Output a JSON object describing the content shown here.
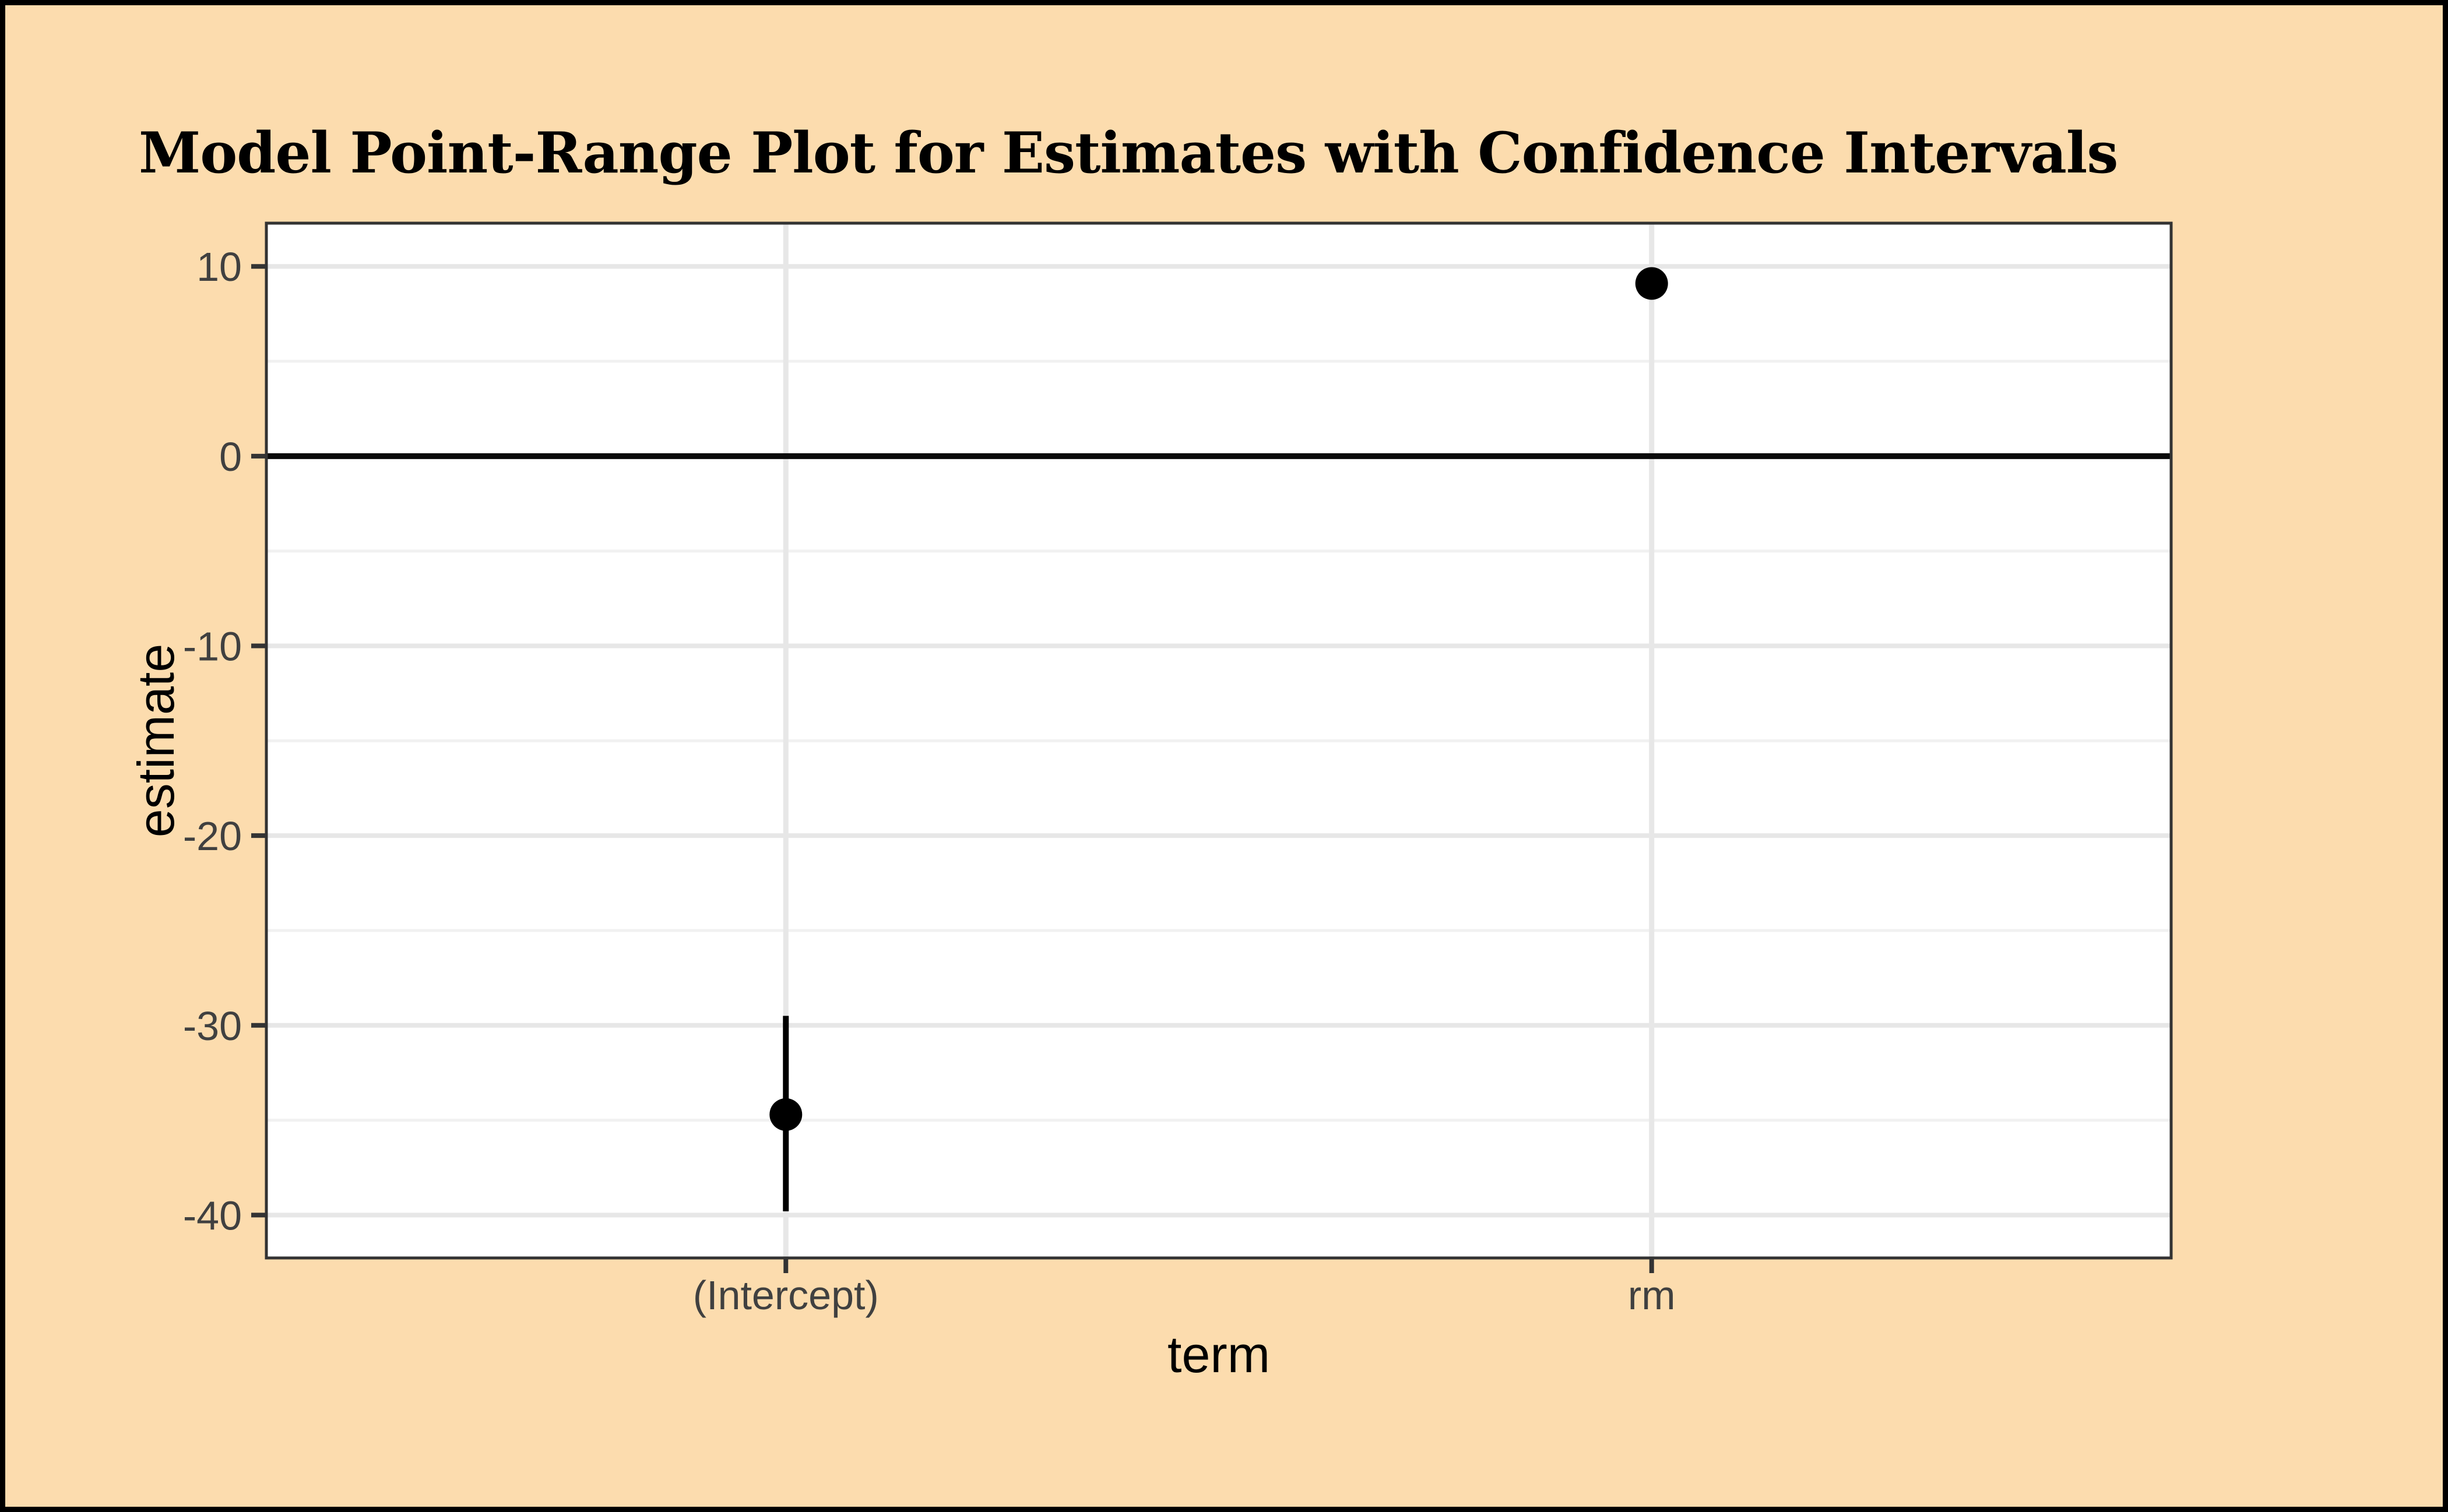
{
  "chart_data": {
    "type": "pointrange",
    "title": "Model Point-Range Plot for Estimates with Confidence Intervals",
    "xlabel": "term",
    "ylabel": "estimate",
    "categories": [
      "(Intercept)",
      "rm"
    ],
    "points": [
      {
        "term": "(Intercept)",
        "estimate": -34.7,
        "conf_low": -39.8,
        "conf_high": -29.5
      },
      {
        "term": "rm",
        "estimate": 9.1,
        "conf_low": 8.3,
        "conf_high": 9.9
      }
    ],
    "y_ticks": [
      {
        "label": "10",
        "value": 10
      },
      {
        "label": "0",
        "value": 0
      },
      {
        "label": "-10",
        "value": -10
      },
      {
        "label": "-20",
        "value": -20
      },
      {
        "label": "-30",
        "value": -30
      },
      {
        "label": "-40",
        "value": -40
      }
    ],
    "y_minor_ticks": [
      5,
      -5,
      -15,
      -25,
      -35
    ],
    "ylim": [
      -42.26,
      12.28
    ],
    "hline": 0,
    "grid": "major-and-minor",
    "legend": "none"
  },
  "colors": {
    "page_background": "#FCDCAE",
    "frame": "#000000",
    "panel_background": "#FFFFFF",
    "panel_border": "#333333",
    "grid_major": "#E7E7E7",
    "grid_minor": "#F1F1F1",
    "tick_mark": "#333333",
    "axis_text": "#404040",
    "axis_title_text": "#000000",
    "title_text": "#000000",
    "point": "#000000",
    "zero_line": "#0A0A0A"
  }
}
